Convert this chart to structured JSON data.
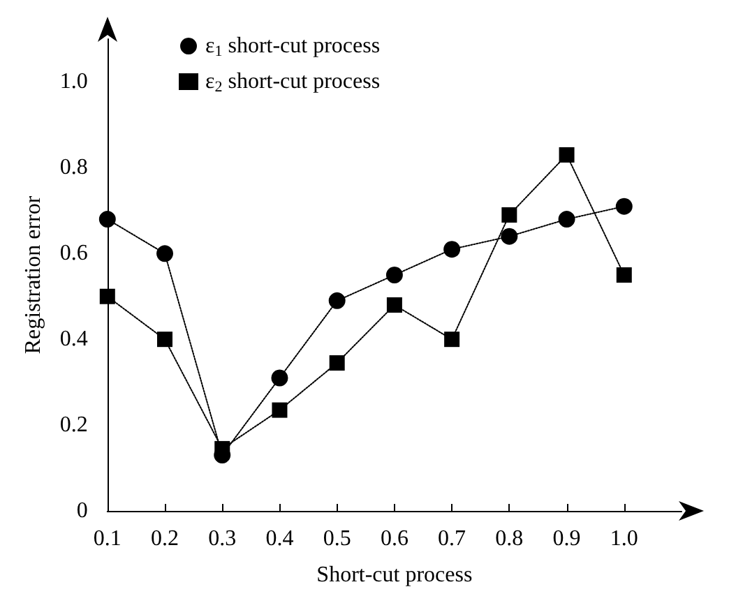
{
  "chart_data": {
    "type": "line",
    "xlabel": "Short-cut process",
    "ylabel": "Registration error",
    "x": [
      0.1,
      0.2,
      0.3,
      0.4,
      0.5,
      0.6,
      0.7,
      0.8,
      0.9,
      1.0
    ],
    "series": [
      {
        "name": "ε$_{1}$ short-cut process",
        "color": "#000000",
        "marker": "circle",
        "values": [
          0.68,
          0.6,
          0.13,
          0.31,
          0.49,
          0.55,
          0.61,
          0.64,
          0.68,
          0.71
        ]
      },
      {
        "name": "ε$_{2}$ short-cut process",
        "color": "#000000",
        "marker": "square",
        "values": [
          0.5,
          0.4,
          0.145,
          0.235,
          0.345,
          0.48,
          0.4,
          0.69,
          0.83,
          0.55
        ]
      }
    ],
    "xlim": [
      0.1,
      1.1
    ],
    "xticks": [
      0.1,
      0.2,
      0.3,
      0.4,
      0.5,
      0.6,
      0.7,
      0.8,
      0.9,
      {
        "value": 1.0,
        "label": "1.0"
      }
    ],
    "ylim": [
      0,
      1.1
    ],
    "yticks": [
      0,
      0.2,
      0.4,
      0.6,
      0.8,
      {
        "value": 1.0,
        "label": "1.0"
      }
    ],
    "line_style": "dotted",
    "grid": false,
    "legend": "top left"
  }
}
